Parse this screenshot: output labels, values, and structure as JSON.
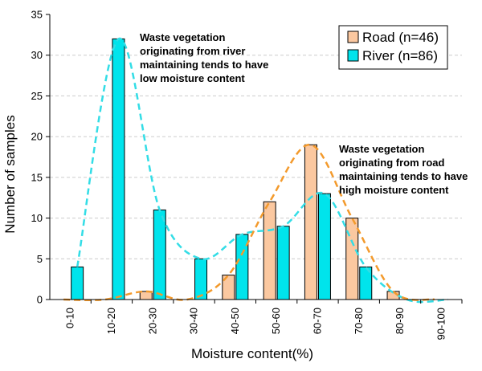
{
  "chart_data": {
    "type": "bar",
    "xlabel": "Moisture content(%)",
    "ylabel": "Number of samples",
    "ylim": [
      0,
      35
    ],
    "yticks": [
      0,
      5,
      10,
      15,
      20,
      25,
      30,
      35
    ],
    "grid": "horizontal dashed",
    "legend_position": "top-right",
    "categories": [
      "0-10",
      "10-20",
      "20-30",
      "30-40",
      "40-50",
      "50-60",
      "60-70",
      "70-80",
      "80-90",
      "90-100"
    ],
    "series": [
      {
        "name": "Road (n=46)",
        "color": "#fbc8a0",
        "values": [
          0,
          0,
          1,
          0,
          3,
          12,
          19,
          10,
          1,
          0
        ]
      },
      {
        "name": "River (n=86)",
        "color": "#00e4ec",
        "values": [
          4,
          32,
          11,
          5,
          8,
          9,
          13,
          4,
          0,
          0
        ]
      }
    ],
    "fit_curves": [
      {
        "series": "River (n=86)",
        "color": "#33dde6",
        "style": "dashed"
      },
      {
        "series": "Road (n=46)",
        "color": "#f39a2c",
        "style": "dashed"
      }
    ],
    "annotations": [
      {
        "lines": [
          "Waste vegetation",
          "originating from river",
          "maintaining tends to have",
          "low moisture content"
        ]
      },
      {
        "lines": [
          "Waste vegetation",
          "originating from road",
          "maintaining tends to have",
          "high moisture content"
        ]
      }
    ]
  }
}
